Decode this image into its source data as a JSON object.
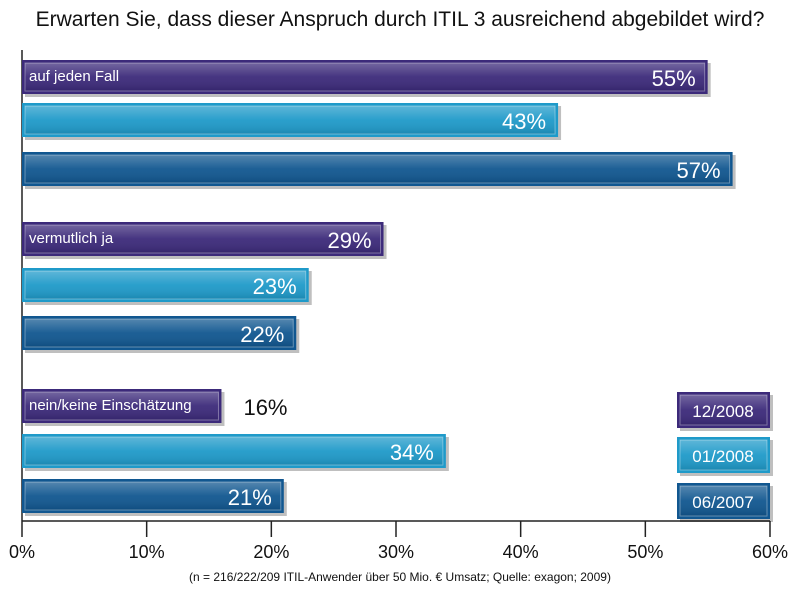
{
  "chart_data": {
    "type": "bar",
    "orientation": "horizontal",
    "title": "Erwarten Sie, dass dieser Anspruch durch ITIL 3 ausreichend abgebildet wird?",
    "categories": [
      "auf jeden Fall",
      "vermutlich ja",
      "nein/keine Einschätzung"
    ],
    "series": [
      {
        "name": "12/2008",
        "color": "#3c2a7a",
        "values": [
          55,
          29,
          16
        ],
        "labels": [
          "55%",
          "29%",
          "16%"
        ]
      },
      {
        "name": "01/2008",
        "color": "#1f9ac9",
        "values": [
          43,
          23,
          34
        ],
        "labels": [
          "43%",
          "23%",
          "34%"
        ]
      },
      {
        "name": "06/2007",
        "color": "#115790",
        "values": [
          57,
          22,
          21
        ],
        "labels": [
          "57%",
          "22%",
          "21%"
        ]
      }
    ],
    "xlim": [
      0,
      60
    ],
    "xticks": [
      0,
      10,
      20,
      30,
      40,
      50,
      60
    ],
    "xtick_labels": [
      "0%",
      "10%",
      "20%",
      "30%",
      "40%",
      "50%",
      "60%"
    ],
    "legend_position": "bottom-right",
    "grid": false,
    "footnote": "(n = 216/222/209 ITIL-Anwender über 50 Mio. € Umsatz; Quelle: exagon; 2009)"
  }
}
